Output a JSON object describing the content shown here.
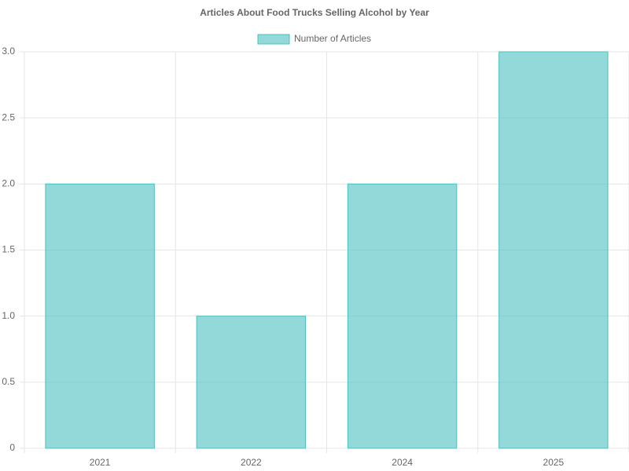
{
  "chart_data": {
    "type": "bar",
    "title": "Articles About Food Trucks Selling Alcohol by Year",
    "categories": [
      "2021",
      "2022",
      "2024",
      "2025"
    ],
    "series": [
      {
        "name": "Number of Articles",
        "color": "#4bc0c0",
        "values": [
          2,
          1,
          2,
          3
        ]
      }
    ],
    "ylim": [
      0,
      3
    ],
    "yticks": [
      0,
      0.5,
      {
        "value": 1,
        "label": "1.0"
      },
      1.5,
      {
        "value": 2,
        "label": "2.0"
      },
      2.5,
      {
        "value": 3,
        "label": "3.0"
      }
    ],
    "grid": true,
    "legend": "top"
  }
}
